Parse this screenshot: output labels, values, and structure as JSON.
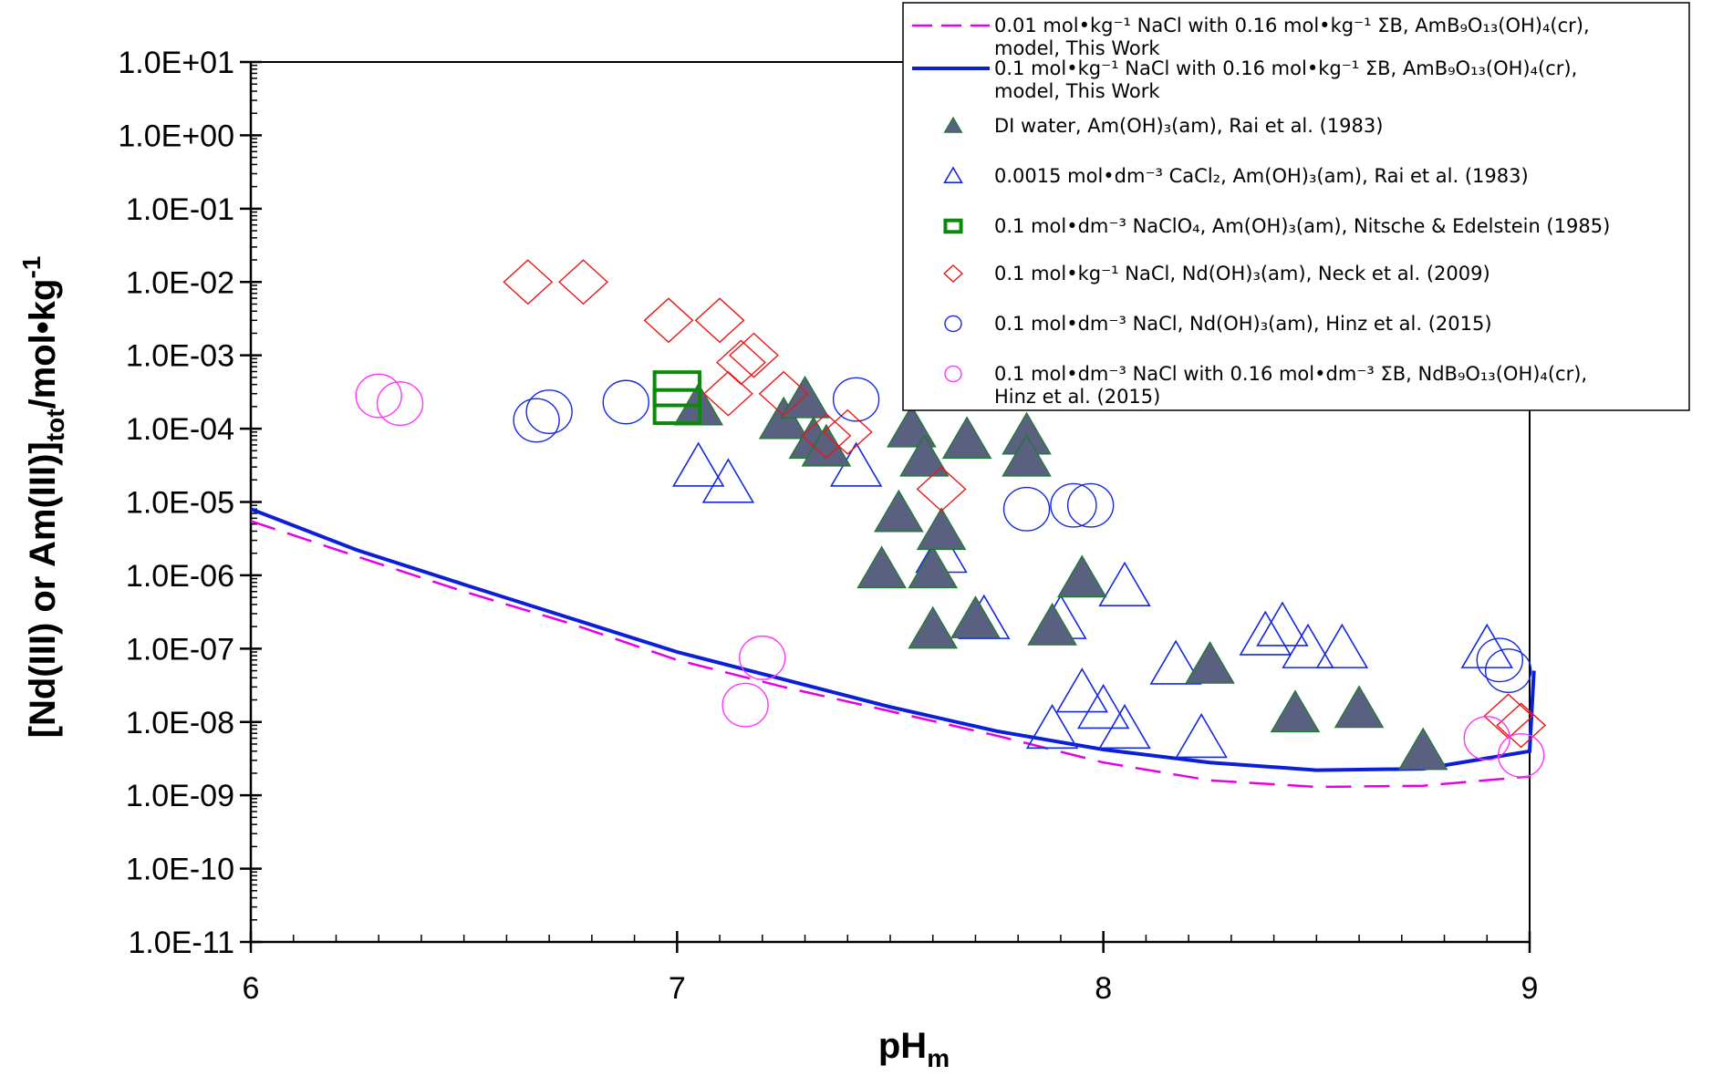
{
  "chart_data": {
    "type": "scatter",
    "title": "",
    "xlabel": {
      "main": "pH",
      "sub": "m"
    },
    "ylabel": {
      "pre": "[Nd(III) or Am(III)]",
      "sub": "tot",
      "mid": "/mol•kg",
      "sup": "-1"
    },
    "x_range": [
      6,
      9
    ],
    "x_ticks": [
      6,
      7,
      8,
      9
    ],
    "x_tick_labels": [
      "6",
      "7",
      "8",
      "9"
    ],
    "y_scale": "log",
    "y_range_exp": [
      -11,
      1
    ],
    "y_tick_exps": [
      1,
      0,
      -1,
      -2,
      -3,
      -4,
      -5,
      -6,
      -7,
      -8,
      -9,
      -10,
      -11
    ],
    "y_tick_labels": [
      "1.0E+01",
      "1.0E+00",
      "1.0E-01",
      "1.0E-02",
      "1.0E-03",
      "1.0E-04",
      "1.0E-05",
      "1.0E-06",
      "1.0E-07",
      "1.0E-08",
      "1.0E-09",
      "1.0E-10",
      "1.0E-11"
    ],
    "grid": false,
    "legend_position": "top-right",
    "legend": [
      {
        "text": "0.01 mol•kg⁻¹ NaCl with 0.16 mol•kg⁻¹ ΣB, AmB₉O₁₃(OH)₄(cr), model, This Work",
        "marker": "dash-line",
        "color": "#e600e6"
      },
      {
        "text": "0.1 mol•kg⁻¹ NaCl with 0.16 mol•kg⁻¹ ΣB, AmB₉O₁₃(OH)₄(cr), model, This Work",
        "marker": "solid-line",
        "color": "#0a1fd6"
      },
      {
        "text": "DI water, Am(OH)₃(am), Rai et al. (1983)",
        "marker": "filled-triangle",
        "color": "#5a6080"
      },
      {
        "text": "0.0015 mol•dm⁻³ CaCl₂, Am(OH)₃(am), Rai et al. (1983)",
        "marker": "open-triangle",
        "color": "#1428e0"
      },
      {
        "text": "0.1  mol•dm⁻³ NaClO₄, Am(OH)₃(am), Nitsche & Edelstein (1985)",
        "marker": "open-square",
        "color": "#0a8a0a"
      },
      {
        "text": "0.1 mol•kg⁻¹ NaCl, Nd(OH)₃(am), Neck et al. (2009)",
        "marker": "open-diamond",
        "color": "#e81818"
      },
      {
        "text": "0.1  mol•dm⁻³ NaCl, Nd(OH)₃(am), Hinz et al. (2015)",
        "marker": "open-circle",
        "color": "#1428e0"
      },
      {
        "text": "0.1 mol•dm⁻³ NaCl with 0.16 mol•dm⁻³ ΣB, NdB₉O₁₃(OH)₄(cr), Hinz et al. (2015)",
        "marker": "open-circle",
        "color": "#ff33ff"
      }
    ],
    "series": [
      {
        "marker": "dash-line",
        "color": "#e600e6",
        "points": [
          [
            6.0,
            5.5e-06
          ],
          [
            6.25,
            1.8e-06
          ],
          [
            6.5,
            6e-07
          ],
          [
            6.75,
            2.2e-07
          ],
          [
            7.0,
            7e-08
          ],
          [
            7.25,
            3e-08
          ],
          [
            7.5,
            1.4e-08
          ],
          [
            7.75,
            6.5e-09
          ],
          [
            8.0,
            2.8e-09
          ],
          [
            8.25,
            1.6e-09
          ],
          [
            8.5,
            1.3e-09
          ],
          [
            8.75,
            1.35e-09
          ],
          [
            9.0,
            1.8e-09
          ]
        ]
      },
      {
        "marker": "solid-line",
        "color": "#0a1fd6",
        "points": [
          [
            6.0,
            8e-06
          ],
          [
            6.25,
            2.2e-06
          ],
          [
            6.5,
            7.5e-07
          ],
          [
            6.75,
            2.6e-07
          ],
          [
            7.0,
            9e-08
          ],
          [
            7.25,
            3.8e-08
          ],
          [
            7.5,
            1.6e-08
          ],
          [
            7.75,
            7.5e-09
          ],
          [
            8.0,
            4.2e-09
          ],
          [
            8.25,
            2.8e-09
          ],
          [
            8.5,
            2.2e-09
          ],
          [
            8.75,
            2.3e-09
          ],
          [
            9.0,
            4e-09
          ],
          [
            9.01,
            5e-08
          ]
        ]
      },
      {
        "marker": "open-triangle",
        "color": "#1428e0",
        "points": [
          [
            7.05,
            3e-05
          ],
          [
            7.12,
            1.8e-05
          ],
          [
            7.42,
            3e-05
          ],
          [
            7.62,
            2e-06
          ],
          [
            7.72,
            2.5e-07
          ],
          [
            7.88,
            8e-09
          ],
          [
            7.9,
            2.5e-07
          ],
          [
            7.95,
            2.5e-08
          ],
          [
            8.0,
            1.5e-08
          ],
          [
            8.05,
            8e-09
          ],
          [
            8.05,
            7e-07
          ],
          [
            8.17,
            6e-08
          ],
          [
            8.23,
            6e-09
          ],
          [
            8.38,
            1.5e-07
          ],
          [
            8.42,
            2e-07
          ],
          [
            8.48,
            1e-07
          ],
          [
            8.56,
            1e-07
          ],
          [
            8.9,
            1e-07
          ]
        ]
      },
      {
        "marker": "filled-triangle",
        "color": "#5a6080",
        "points": [
          [
            7.05,
            0.0002
          ],
          [
            7.25,
            0.00013
          ],
          [
            7.3,
            0.00025
          ],
          [
            7.32,
            7e-05
          ],
          [
            7.35,
            5.5e-05
          ],
          [
            7.48,
            1.2e-06
          ],
          [
            7.52,
            7e-06
          ],
          [
            7.55,
            0.0001
          ],
          [
            7.58,
            4e-05
          ],
          [
            7.6,
            1.2e-06
          ],
          [
            7.6,
            1.8e-07
          ],
          [
            7.62,
            4e-06
          ],
          [
            7.68,
            7e-05
          ],
          [
            7.7,
            2.5e-07
          ],
          [
            7.82,
            8e-05
          ],
          [
            7.82,
            4e-05
          ],
          [
            7.88,
            2e-07
          ],
          [
            7.95,
            9e-07
          ],
          [
            8.25,
            6e-08
          ],
          [
            8.45,
            1.3e-08
          ],
          [
            8.6,
            1.5e-08
          ],
          [
            8.75,
            4e-09
          ]
        ]
      },
      {
        "marker": "open-square",
        "color": "#0a8a0a",
        "points": [
          [
            7.0,
            0.00035
          ],
          [
            7.0,
            0.0002
          ]
        ]
      },
      {
        "marker": "open-diamond",
        "color": "#e81818",
        "points": [
          [
            6.65,
            0.01
          ],
          [
            6.78,
            0.01
          ],
          [
            6.98,
            0.003
          ],
          [
            7.1,
            0.003
          ],
          [
            7.12,
            0.0003
          ],
          [
            7.15,
            0.0008
          ],
          [
            7.18,
            0.001
          ],
          [
            7.25,
            0.0003
          ],
          [
            7.35,
            8e-05
          ],
          [
            7.4,
            9e-05
          ],
          [
            7.62,
            1.5e-05
          ],
          [
            8.95,
            1.2e-08
          ],
          [
            8.98,
            9e-09
          ]
        ]
      },
      {
        "marker": "open-circle",
        "color": "#1428e0",
        "points": [
          [
            6.67,
            0.00013
          ],
          [
            6.7,
            0.00017
          ],
          [
            6.88,
            0.00023
          ],
          [
            7.42,
            0.00025
          ],
          [
            7.82,
            8e-06
          ],
          [
            7.93,
            9e-06
          ],
          [
            7.97,
            9e-06
          ],
          [
            8.93,
            7e-08
          ],
          [
            8.95,
            5e-08
          ]
        ]
      },
      {
        "marker": "open-circle",
        "color": "#ff33ff",
        "points": [
          [
            6.3,
            0.00028
          ],
          [
            6.35,
            0.00022
          ],
          [
            7.16,
            1.7e-08
          ],
          [
            7.2,
            7.5e-08
          ],
          [
            8.9,
            6e-09
          ],
          [
            8.98,
            3.5e-09
          ]
        ]
      }
    ]
  }
}
